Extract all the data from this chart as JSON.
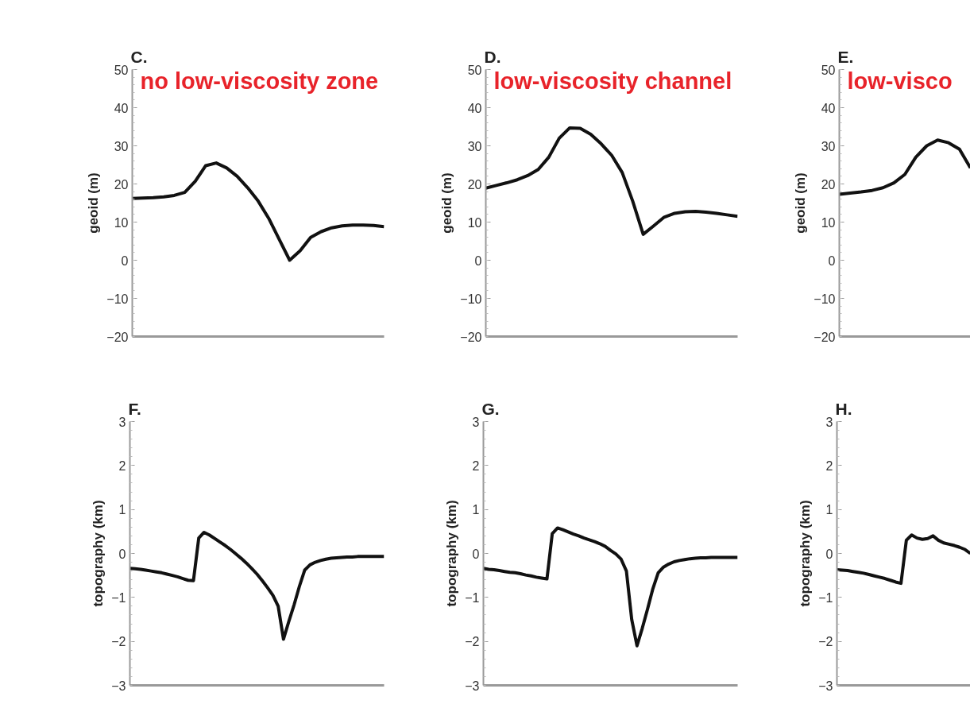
{
  "chart_data": [
    {
      "type": "line",
      "title": "C.",
      "annotations": [
        "no low-viscosity zone"
      ],
      "ylabel": "geoid (m)",
      "ylim": [
        -20,
        50
      ],
      "yticks": [
        -20,
        -10,
        0,
        10,
        20,
        30,
        40,
        50
      ],
      "grid": false,
      "tick_labels": "y",
      "categories": [
        null,
        null,
        null,
        null,
        null,
        null,
        null,
        null,
        null,
        null,
        null,
        null,
        null,
        null,
        null,
        null,
        null,
        null,
        null,
        null,
        null,
        null,
        null,
        null,
        null
      ],
      "series": [
        {
          "color": "#111111",
          "values": [
            16.2,
            16.3,
            16.4,
            16.6,
            17.0,
            17.8,
            20.7,
            24.8,
            25.5,
            24.2,
            22,
            19,
            15.5,
            11,
            5.5,
            0,
            2.5,
            6,
            7.5,
            8.5,
            9,
            9.2,
            9.2,
            9.1,
            8.8
          ]
        }
      ]
    },
    {
      "type": "line",
      "title": "D.",
      "annotations": [
        "low-viscosity channel"
      ],
      "ylabel": "geoid (m)",
      "ylim": [
        -20,
        50
      ],
      "yticks": [
        -20,
        -10,
        0,
        10,
        20,
        30,
        40,
        50
      ],
      "grid": false,
      "tick_labels": "y",
      "categories": [
        null,
        null,
        null,
        null,
        null,
        null,
        null,
        null,
        null,
        null,
        null,
        null,
        null,
        null,
        null,
        null,
        null,
        null,
        null,
        null,
        null,
        null,
        null,
        null,
        null
      ],
      "series": [
        {
          "color": "#111111",
          "values": [
            18.9,
            19.6,
            20.3,
            21.1,
            22.2,
            23.8,
            27,
            32,
            34.7,
            34.6,
            33,
            30.5,
            27.5,
            23,
            15.5,
            6.8,
            9,
            11.3,
            12.3,
            12.7,
            12.8,
            12.6,
            12.3,
            11.9,
            11.5
          ]
        }
      ]
    },
    {
      "type": "line",
      "title": "E.",
      "annotations": [
        "low-visco"
      ],
      "ylabel": "geoid (m)",
      "ylim": [
        -20,
        50
      ],
      "yticks": [
        -20,
        -10,
        0,
        10,
        20,
        30,
        40,
        50
      ],
      "grid": false,
      "tick_labels": "y",
      "categories": [
        null,
        null,
        null,
        null,
        null,
        null,
        null,
        null,
        null,
        null,
        null,
        null,
        null
      ],
      "series": [
        {
          "color": "#111111",
          "values": [
            17.3,
            17.6,
            17.9,
            18.3,
            19.0,
            20.3,
            22.5,
            27,
            30,
            31.5,
            30.8,
            29.1,
            24.2
          ]
        }
      ]
    },
    {
      "type": "line",
      "title": "F.",
      "ylabel": "topography (km)",
      "ylim": [
        -3,
        3
      ],
      "yticks": [
        -3,
        -2,
        -1,
        0,
        1,
        2,
        3
      ],
      "grid": false,
      "tick_labels": "y",
      "categories": [
        null,
        null,
        null,
        null,
        null,
        null,
        null,
        null,
        null,
        null,
        null,
        null,
        null,
        null,
        null,
        null,
        null,
        null,
        null,
        null,
        null,
        null,
        null,
        null,
        null,
        null,
        null,
        null,
        null,
        null,
        null,
        null,
        null,
        null,
        null,
        null,
        null,
        null,
        null,
        null,
        null,
        null,
        null,
        null,
        null,
        null,
        null,
        null,
        null
      ],
      "series": [
        {
          "color": "#111111",
          "values": [
            -0.34,
            -0.35,
            -0.36,
            -0.38,
            -0.4,
            -0.42,
            -0.44,
            -0.47,
            -0.5,
            -0.53,
            -0.57,
            -0.61,
            -0.62,
            0.35,
            0.48,
            0.42,
            0.34,
            0.26,
            0.18,
            0.09,
            -0.01,
            -0.11,
            -0.22,
            -0.34,
            -0.47,
            -0.62,
            -0.78,
            -0.95,
            -1.2,
            -1.95,
            -1.55,
            -1.17,
            -0.75,
            -0.38,
            -0.26,
            -0.2,
            -0.16,
            -0.13,
            -0.11,
            -0.1,
            -0.09,
            -0.08,
            -0.08,
            -0.07,
            -0.07,
            -0.07,
            -0.07,
            -0.07,
            -0.07
          ]
        }
      ]
    },
    {
      "type": "line",
      "title": "G.",
      "ylabel": "topography (km)",
      "ylim": [
        -3,
        3
      ],
      "yticks": [
        -3,
        -2,
        -1,
        0,
        1,
        2,
        3
      ],
      "grid": false,
      "tick_labels": "y",
      "categories": [
        null,
        null,
        null,
        null,
        null,
        null,
        null,
        null,
        null,
        null,
        null,
        null,
        null,
        null,
        null,
        null,
        null,
        null,
        null,
        null,
        null,
        null,
        null,
        null,
        null,
        null,
        null,
        null,
        null,
        null,
        null,
        null,
        null,
        null,
        null,
        null,
        null,
        null,
        null,
        null,
        null,
        null,
        null,
        null,
        null,
        null,
        null,
        null,
        null
      ],
      "series": [
        {
          "color": "#111111",
          "values": [
            -0.34,
            -0.36,
            -0.37,
            -0.39,
            -0.41,
            -0.43,
            -0.44,
            -0.46,
            -0.49,
            -0.51,
            -0.54,
            -0.56,
            -0.58,
            0.45,
            0.58,
            0.54,
            0.49,
            0.44,
            0.4,
            0.35,
            0.31,
            0.27,
            0.22,
            0.16,
            0.07,
            -0.01,
            -0.13,
            -0.4,
            -1.5,
            -2.1,
            -1.7,
            -1.26,
            -0.8,
            -0.44,
            -0.31,
            -0.24,
            -0.19,
            -0.16,
            -0.14,
            -0.12,
            -0.11,
            -0.1,
            -0.1,
            -0.09,
            -0.09,
            -0.09,
            -0.09,
            -0.09,
            -0.09
          ]
        }
      ]
    },
    {
      "type": "line",
      "title": "H.",
      "ylabel": "topography (km)",
      "ylim": [
        -3,
        3
      ],
      "yticks": [
        -3,
        -2,
        -1,
        0,
        1,
        2,
        3
      ],
      "grid": false,
      "tick_labels": "y",
      "categories": [
        null,
        null,
        null,
        null,
        null,
        null,
        null,
        null,
        null,
        null,
        null,
        null,
        null,
        null,
        null,
        null,
        null,
        null,
        null,
        null,
        null,
        null,
        null,
        null,
        null,
        null
      ],
      "series": [
        {
          "color": "#111111",
          "values": [
            -0.37,
            -0.38,
            -0.39,
            -0.41,
            -0.43,
            -0.45,
            -0.48,
            -0.51,
            -0.54,
            -0.57,
            -0.61,
            -0.65,
            -0.68,
            0.3,
            0.42,
            0.35,
            0.32,
            0.34,
            0.4,
            0.3,
            0.24,
            0.21,
            0.18,
            0.14,
            0.09,
            0.0
          ]
        }
      ]
    }
  ]
}
